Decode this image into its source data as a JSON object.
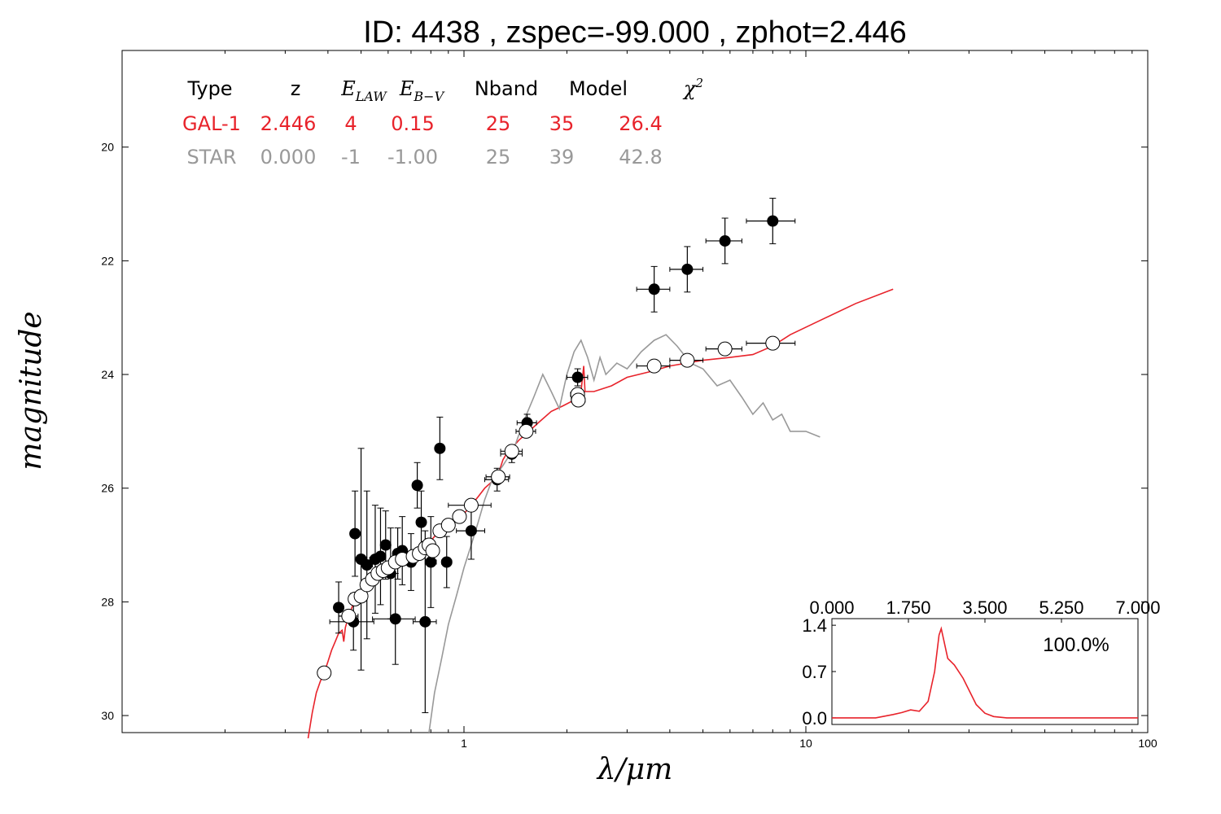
{
  "title": "ID:  4438  , zspec=-99.000 , zphot=2.446",
  "colors": {
    "galaxy": "#e8232b",
    "star": "#999999",
    "text": "#000000"
  },
  "table": {
    "headers": [
      {
        "text": "Type",
        "math": false
      },
      {
        "text": "z",
        "math": false
      },
      {
        "text": "E",
        "sub": "LAW",
        "math": true
      },
      {
        "text": "E",
        "sub": "B−V",
        "math": true
      },
      {
        "text": "Nband",
        "math": false
      },
      {
        "text": "Model",
        "math": false
      },
      {
        "text": "χ",
        "sup": "2",
        "math": true
      }
    ],
    "rows": [
      {
        "cells": [
          "GAL-1",
          "2.446",
          "4",
          "0.15",
          "25",
          "35",
          "26.4"
        ],
        "color": "#e8232b"
      },
      {
        "cells": [
          "STAR",
          "0.000",
          "-1",
          "-1.00",
          "25",
          "39",
          "42.8"
        ],
        "color": "#999999"
      }
    ]
  },
  "chart_data": [
    {
      "type": "scatter",
      "xlabel": "λ/μm",
      "ylabel": "magnitude",
      "xscale": "log",
      "xlim": [
        0.1,
        100
      ],
      "ylim": [
        30.3,
        18.3
      ],
      "xtick_labels": [
        "1",
        "10",
        "100"
      ],
      "ytick_labels": [
        "20",
        "22",
        "24",
        "26",
        "28",
        "30"
      ],
      "series": [
        {
          "kind": "observed",
          "marker": "filled-circle",
          "points": [
            {
              "x": 0.43,
              "y": 28.1,
              "xerr": 0.0,
              "yerr": 0.45
            },
            {
              "x": 0.475,
              "y": 28.35,
              "xerr": 0.07,
              "yerr": 0.5
            },
            {
              "x": 0.48,
              "y": 26.8,
              "xerr": 0.0,
              "yerr": 0.75
            },
            {
              "x": 0.5,
              "y": 27.25,
              "xerr": 0.02,
              "yerr": 1.95
            },
            {
              "x": 0.52,
              "y": 27.35,
              "xerr": 0.02,
              "yerr": 1.3
            },
            {
              "x": 0.55,
              "y": 27.25,
              "xerr": 0.02,
              "yerr": 0.95
            },
            {
              "x": 0.57,
              "y": 27.2,
              "xerr": 0.02,
              "yerr": 0.85
            },
            {
              "x": 0.59,
              "y": 27.0,
              "xerr": 0.02,
              "yerr": 0.6
            },
            {
              "x": 0.61,
              "y": 27.5,
              "xerr": 0.02,
              "yerr": 0.8
            },
            {
              "x": 0.63,
              "y": 28.3,
              "xerr": 0.09,
              "yerr": 0.8
            },
            {
              "x": 0.64,
              "y": 27.15,
              "xerr": 0.02,
              "yerr": 0.45
            },
            {
              "x": 0.66,
              "y": 27.1,
              "xerr": 0.02,
              "yerr": 0.6
            },
            {
              "x": 0.7,
              "y": 27.3,
              "xerr": 0.02,
              "yerr": 0.5
            },
            {
              "x": 0.73,
              "y": 25.95,
              "xerr": 0.0,
              "yerr": 0.4
            },
            {
              "x": 0.75,
              "y": 26.6,
              "xerr": 0.02,
              "yerr": 0.55
            },
            {
              "x": 0.77,
              "y": 28.35,
              "xerr": 0.06,
              "yerr": 1.6
            },
            {
              "x": 0.8,
              "y": 27.3,
              "xerr": 0.03,
              "yerr": 0.8
            },
            {
              "x": 0.85,
              "y": 25.3,
              "xerr": 0.0,
              "yerr": 0.55
            },
            {
              "x": 0.89,
              "y": 27.3,
              "xerr": 0.03,
              "yerr": 0.45
            },
            {
              "x": 1.05,
              "y": 26.75,
              "xerr": 0.1,
              "yerr": 0.5
            },
            {
              "x": 1.25,
              "y": 25.85,
              "xerr": 0.1,
              "yerr": 0.2
            },
            {
              "x": 1.38,
              "y": 25.4,
              "xerr": 0.1,
              "yerr": 0.15
            },
            {
              "x": 1.53,
              "y": 24.85,
              "xerr": 0.1,
              "yerr": 0.15
            },
            {
              "x": 2.15,
              "y": 24.05,
              "xerr": 0.15,
              "yerr": 0.15
            },
            {
              "x": 3.6,
              "y": 22.5,
              "xerr": 0.4,
              "yerr": 0.4
            },
            {
              "x": 4.5,
              "y": 22.15,
              "xerr": 0.5,
              "yerr": 0.4
            },
            {
              "x": 5.8,
              "y": 21.65,
              "xerr": 0.7,
              "yerr": 0.4
            },
            {
              "x": 8.0,
              "y": 21.3,
              "xerr": 1.3,
              "yerr": 0.4
            }
          ]
        },
        {
          "kind": "model",
          "marker": "open-circle",
          "points": [
            {
              "x": 0.39,
              "y": 29.25,
              "xerr": 0.01
            },
            {
              "x": 0.46,
              "y": 28.25,
              "xerr": 0.03
            },
            {
              "x": 0.48,
              "y": 27.95,
              "xerr": 0.01
            },
            {
              "x": 0.5,
              "y": 27.9,
              "xerr": 0.01
            },
            {
              "x": 0.52,
              "y": 27.7,
              "xerr": 0.01
            },
            {
              "x": 0.54,
              "y": 27.6,
              "xerr": 0.01
            },
            {
              "x": 0.56,
              "y": 27.5,
              "xerr": 0.01
            },
            {
              "x": 0.58,
              "y": 27.45,
              "xerr": 0.01
            },
            {
              "x": 0.6,
              "y": 27.4,
              "xerr": 0.01
            },
            {
              "x": 0.63,
              "y": 27.3,
              "xerr": 0.01
            },
            {
              "x": 0.66,
              "y": 27.25,
              "xerr": 0.01
            },
            {
              "x": 0.71,
              "y": 27.2,
              "xerr": 0.02
            },
            {
              "x": 0.74,
              "y": 27.15,
              "xerr": 0.02
            },
            {
              "x": 0.77,
              "y": 27.05,
              "xerr": 0.02
            },
            {
              "x": 0.79,
              "y": 27.0,
              "xerr": 0.02
            },
            {
              "x": 0.81,
              "y": 27.1,
              "xerr": 0.02
            },
            {
              "x": 0.85,
              "y": 26.75,
              "xerr": 0.03
            },
            {
              "x": 0.9,
              "y": 26.65,
              "xerr": 0.03
            },
            {
              "x": 0.97,
              "y": 26.5,
              "xerr": 0.04
            },
            {
              "x": 1.05,
              "y": 26.3,
              "xerr": 0.15
            },
            {
              "x": 1.26,
              "y": 25.8,
              "xerr": 0.1
            },
            {
              "x": 1.38,
              "y": 25.35,
              "xerr": 0.1
            },
            {
              "x": 1.52,
              "y": 25.0,
              "xerr": 0.1
            },
            {
              "x": 2.15,
              "y": 24.35,
              "xerr": 0.1
            },
            {
              "x": 2.16,
              "y": 24.45,
              "xerr": 0.1
            },
            {
              "x": 3.6,
              "y": 23.85,
              "xerr": 0.4
            },
            {
              "x": 4.5,
              "y": 23.75,
              "xerr": 0.5
            },
            {
              "x": 5.8,
              "y": 23.55,
              "xerr": 0.7
            },
            {
              "x": 8.0,
              "y": 23.45,
              "xerr": 1.3
            }
          ]
        },
        {
          "kind": "galaxy-template",
          "line": "#e8232b",
          "points": [
            [
              0.35,
              30.4
            ],
            [
              0.36,
              29.95
            ],
            [
              0.37,
              29.6
            ],
            [
              0.38,
              29.4
            ],
            [
              0.39,
              29.25
            ],
            [
              0.4,
              29.05
            ],
            [
              0.41,
              28.85
            ],
            [
              0.42,
              28.7
            ],
            [
              0.43,
              28.55
            ],
            [
              0.44,
              28.5
            ],
            [
              0.445,
              28.7
            ],
            [
              0.45,
              28.45
            ],
            [
              0.46,
              28.25
            ],
            [
              0.47,
              28.1
            ],
            [
              0.48,
              27.95
            ],
            [
              0.5,
              27.85
            ],
            [
              0.52,
              27.7
            ],
            [
              0.55,
              27.55
            ],
            [
              0.58,
              27.45
            ],
            [
              0.62,
              27.35
            ],
            [
              0.66,
              27.25
            ],
            [
              0.7,
              27.2
            ],
            [
              0.74,
              27.1
            ],
            [
              0.78,
              27.0
            ],
            [
              0.82,
              26.85
            ],
            [
              0.86,
              26.75
            ],
            [
              0.9,
              26.65
            ],
            [
              0.95,
              26.55
            ],
            [
              1.0,
              26.45
            ],
            [
              1.05,
              26.3
            ],
            [
              1.1,
              26.15
            ],
            [
              1.15,
              26.0
            ],
            [
              1.2,
              25.9
            ],
            [
              1.26,
              25.75
            ],
            [
              1.3,
              25.5
            ],
            [
              1.33,
              25.4
            ],
            [
              1.38,
              25.3
            ],
            [
              1.45,
              25.15
            ],
            [
              1.55,
              25.0
            ],
            [
              1.65,
              24.85
            ],
            [
              1.8,
              24.65
            ],
            [
              1.95,
              24.55
            ],
            [
              2.1,
              24.45
            ],
            [
              2.2,
              24.3
            ],
            [
              2.24,
              23.85
            ],
            [
              2.26,
              24.3
            ],
            [
              2.4,
              24.3
            ],
            [
              2.7,
              24.2
            ],
            [
              3.0,
              24.05
            ],
            [
              3.5,
              23.95
            ],
            [
              4.0,
              23.85
            ],
            [
              5.0,
              23.75
            ],
            [
              6.0,
              23.7
            ],
            [
              7.0,
              23.65
            ],
            [
              8.0,
              23.5
            ],
            [
              9.0,
              23.3
            ],
            [
              11.0,
              23.05
            ],
            [
              14.0,
              22.75
            ],
            [
              18.0,
              22.5
            ]
          ]
        },
        {
          "kind": "star-template",
          "line": "#999999",
          "points": [
            [
              0.79,
              30.3
            ],
            [
              0.82,
              29.6
            ],
            [
              0.86,
              29.0
            ],
            [
              0.9,
              28.4
            ],
            [
              0.95,
              27.9
            ],
            [
              1.0,
              27.4
            ],
            [
              1.05,
              27.0
            ],
            [
              1.1,
              26.6
            ],
            [
              1.15,
              26.2
            ],
            [
              1.2,
              25.9
            ],
            [
              1.3,
              25.6
            ],
            [
              1.4,
              25.3
            ],
            [
              1.5,
              24.8
            ],
            [
              1.6,
              24.4
            ],
            [
              1.7,
              24.0
            ],
            [
              1.8,
              24.3
            ],
            [
              1.9,
              24.6
            ],
            [
              2.0,
              24.0
            ],
            [
              2.1,
              23.6
            ],
            [
              2.2,
              23.4
            ],
            [
              2.3,
              23.7
            ],
            [
              2.4,
              24.1
            ],
            [
              2.5,
              23.7
            ],
            [
              2.6,
              24.0
            ],
            [
              2.8,
              23.8
            ],
            [
              3.0,
              23.9
            ],
            [
              3.3,
              23.6
            ],
            [
              3.6,
              23.4
            ],
            [
              3.9,
              23.3
            ],
            [
              4.2,
              23.5
            ],
            [
              4.6,
              23.8
            ],
            [
              5.0,
              23.9
            ],
            [
              5.5,
              24.2
            ],
            [
              6.0,
              24.1
            ],
            [
              6.5,
              24.4
            ],
            [
              7.0,
              24.7
            ],
            [
              7.5,
              24.5
            ],
            [
              8.0,
              24.8
            ],
            [
              8.5,
              24.7
            ],
            [
              9.0,
              25.0
            ],
            [
              10.0,
              25.0
            ],
            [
              11.0,
              25.1
            ]
          ]
        }
      ]
    },
    {
      "type": "line",
      "inset": true,
      "xlim": [
        0.0,
        7.0
      ],
      "ylim": [
        -0.1,
        1.5
      ],
      "xtick_labels": [
        "0.000",
        "1.750",
        "3.500",
        "5.250",
        "7.000"
      ],
      "ytick_labels": [
        "0.0",
        "0.7",
        "1.4"
      ],
      "annotation": "100.0%",
      "series": [
        {
          "line": "#e8232b",
          "x": [
            0.0,
            1.0,
            1.4,
            1.6,
            1.8,
            2.0,
            2.2,
            2.35,
            2.45,
            2.5,
            2.55,
            2.65,
            2.8,
            3.0,
            3.15,
            3.3,
            3.5,
            3.7,
            4.0,
            5.0,
            6.0,
            7.0
          ],
          "y": [
            0.0,
            0.0,
            0.05,
            0.08,
            0.12,
            0.1,
            0.25,
            0.7,
            1.25,
            1.35,
            1.2,
            0.9,
            0.8,
            0.6,
            0.4,
            0.2,
            0.07,
            0.02,
            0.0,
            0.0,
            0.0,
            0.0
          ]
        }
      ]
    }
  ]
}
